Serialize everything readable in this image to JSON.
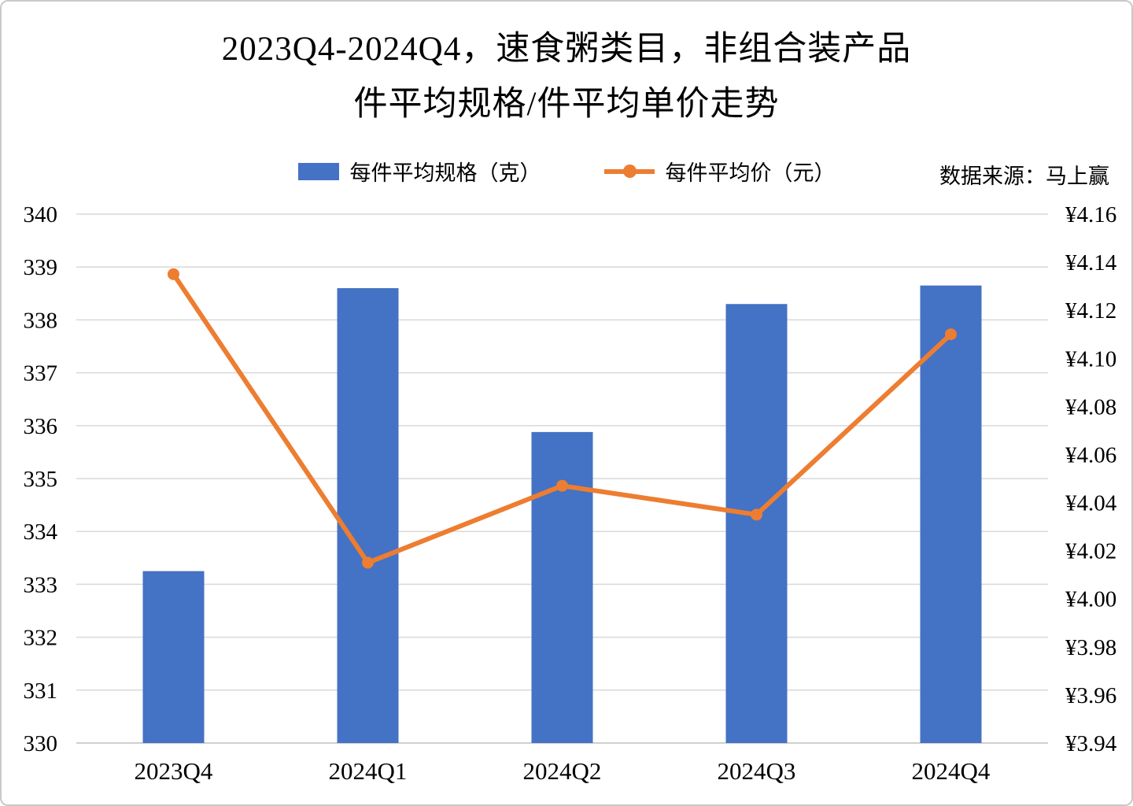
{
  "title": {
    "line1": "2023Q4-2024Q4，速食粥类目，非组合装产品",
    "line2": "件平均规格/件平均单价走势"
  },
  "legend": {
    "bar": {
      "label": "每件平均规格（克）",
      "color": "#4472C4"
    },
    "line": {
      "label": "每件平均价（元）",
      "color": "#ED7D31"
    }
  },
  "source": "数据来源：马上赢",
  "chart_data": {
    "type": "combo-bar-line",
    "title": "2023Q4-2024Q4，速食粥类目，非组合装产品 件平均规格/件平均单价走势",
    "categories": [
      "2023Q4",
      "2024Q1",
      "2024Q2",
      "2024Q3",
      "2024Q4"
    ],
    "series": [
      {
        "name": "每件平均规格（克）",
        "type": "bar",
        "axis": "left",
        "color": "#4472C4",
        "values": [
          333.25,
          338.6,
          335.88,
          338.3,
          338.65
        ]
      },
      {
        "name": "每件平均价（元）",
        "type": "line",
        "axis": "right",
        "color": "#ED7D31",
        "values": [
          4.135,
          4.015,
          4.047,
          4.035,
          4.11
        ]
      }
    ],
    "left_axis": {
      "min": 330,
      "max": 340,
      "step": 1,
      "tick_labels": [
        "340",
        "339",
        "338",
        "337",
        "336",
        "335",
        "334",
        "333",
        "332",
        "331",
        "330"
      ]
    },
    "right_axis": {
      "min": 3.94,
      "max": 4.16,
      "step": 0.02,
      "tick_labels": [
        "¥4.16",
        "¥4.14",
        "¥4.12",
        "¥4.10",
        "¥4.08",
        "¥4.06",
        "¥4.04",
        "¥4.02",
        "¥4.00",
        "¥3.98",
        "¥3.96",
        "¥3.94"
      ]
    },
    "gridlines": {
      "color": "#D9D9D9",
      "horizontal": true
    },
    "legend_position": "top"
  }
}
